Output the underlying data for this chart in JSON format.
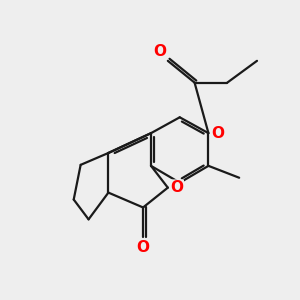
{
  "bg_color": "#eeeeee",
  "bond_color": "#1a1a1a",
  "oxygen_color": "#ff0000",
  "bond_width": 1.6,
  "font_size_atom": 10.5,
  "figsize": [
    3.0,
    3.0
  ],
  "dpi": 100,
  "xlim": [
    0,
    10
  ],
  "ylim": [
    0,
    10
  ]
}
